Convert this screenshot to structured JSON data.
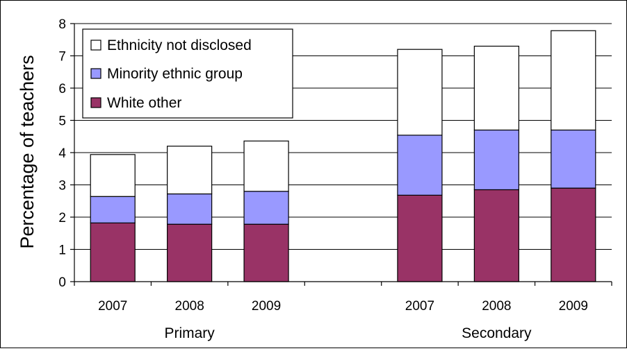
{
  "chart_data": {
    "type": "bar",
    "stacked": true,
    "title": "",
    "xlabel": "",
    "ylabel": "Percentage of teachers",
    "ylim": [
      0,
      8
    ],
    "yticks": [
      0,
      1,
      2,
      3,
      4,
      5,
      6,
      7,
      8
    ],
    "grid": true,
    "legend_position": "top-left",
    "groups": [
      "Primary",
      "Secondary"
    ],
    "categories": [
      "2007",
      "2008",
      "2009",
      "2007",
      "2008",
      "2009"
    ],
    "category_groups": [
      "Primary",
      "Primary",
      "Primary",
      "Secondary",
      "Secondary",
      "Secondary"
    ],
    "series": [
      {
        "name": "White other",
        "color": "#993366",
        "values": [
          1.82,
          1.78,
          1.78,
          2.68,
          2.85,
          2.9
        ]
      },
      {
        "name": "Minority ethnic group",
        "color": "#9999ff",
        "values": [
          0.82,
          0.94,
          1.02,
          1.86,
          1.85,
          1.8
        ]
      },
      {
        "name": "Ethnicity not disclosed",
        "color": "#ffffff",
        "values": [
          1.3,
          1.48,
          1.56,
          2.66,
          2.6,
          3.08
        ]
      }
    ],
    "legend_order": [
      "Ethnicity not disclosed",
      "Minority ethnic group",
      "White other"
    ]
  }
}
